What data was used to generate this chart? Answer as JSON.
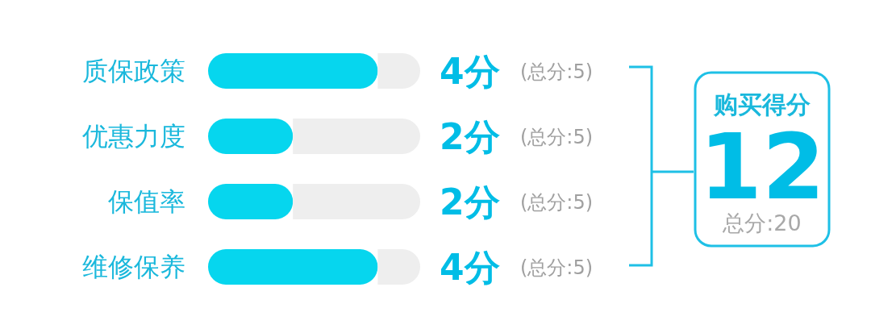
{
  "chart_data": {
    "type": "bar",
    "orientation": "horizontal",
    "stacked": true,
    "categories": [
      "质保政策",
      "优惠力度",
      "保值率",
      "维修保养"
    ],
    "xlim": [
      0,
      5
    ],
    "series": [
      {
        "color": "#06d6ee",
        "values": [
          4,
          2,
          2,
          4
        ],
        "value_labels": [
          "4分",
          "2分",
          "2分",
          "4分"
        ]
      },
      {
        "color": "#eeeeee",
        "values": [
          1,
          3,
          3,
          1
        ]
      }
    ],
    "annotations": [
      "(总分:5)",
      "(总分:5)",
      "(总分:5)",
      "(总分:5)",
      "购买得分",
      "12",
      "总分:20"
    ]
  }
}
